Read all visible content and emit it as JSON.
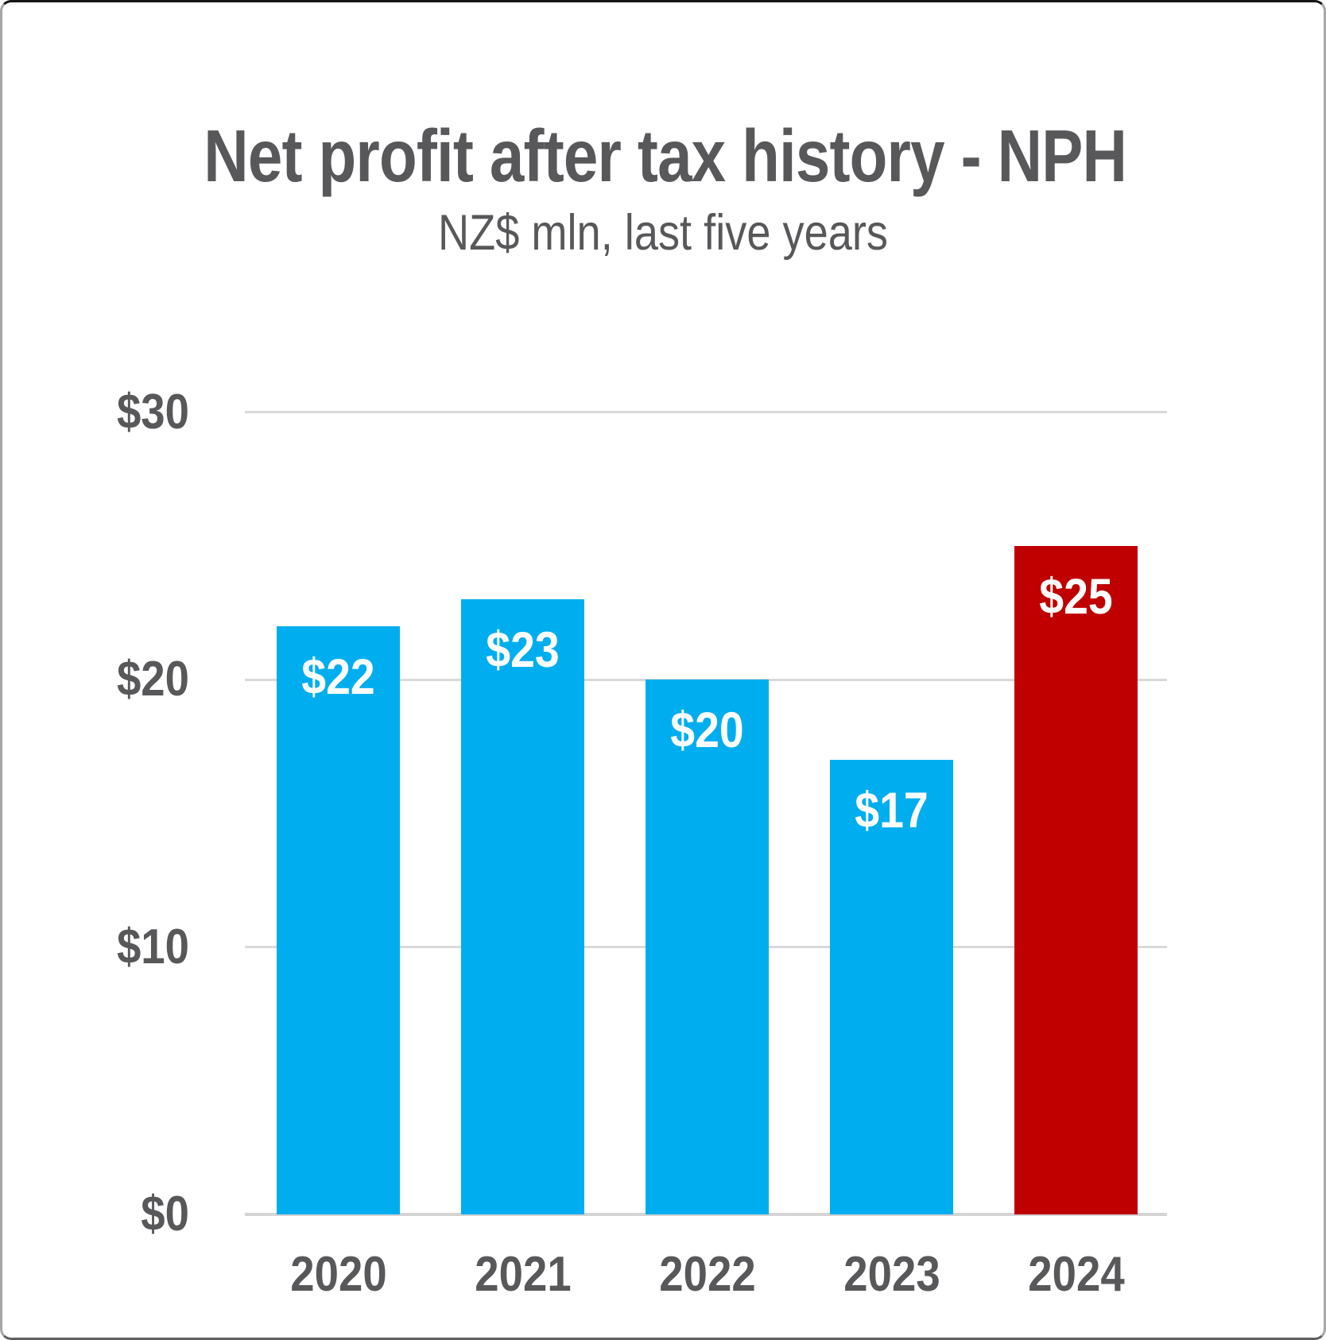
{
  "page": {
    "title": "Net profit after tax history - NPH",
    "subtitle": "NZ$ mln, last five years"
  },
  "chart_data": {
    "type": "bar",
    "title": "Net profit after tax history - NPH",
    "subtitle": "NZ$ mln, last five years",
    "categories": [
      "2020",
      "2021",
      "2022",
      "2023",
      "2024"
    ],
    "values": [
      22,
      23,
      20,
      17,
      25
    ],
    "value_labels": [
      "$22",
      "$23",
      "$20",
      "$17",
      "$25"
    ],
    "series": [
      {
        "name": "Net profit after tax (NZ$ mln)",
        "values": [
          22,
          23,
          20,
          17,
          25
        ]
      }
    ],
    "xlabel": "",
    "ylabel": "",
    "ylim": [
      0,
      30
    ],
    "yticks": [
      {
        "value": 30,
        "label": "$30"
      },
      {
        "value": 20,
        "label": "$20"
      },
      {
        "value": 10,
        "label": "$10"
      },
      {
        "value": 0,
        "label": "$0"
      }
    ],
    "grid": "horizontal",
    "legend_position": "none",
    "bar_colors": [
      "#00aeef",
      "#00aeef",
      "#00aeef",
      "#00aeef",
      "#c00000"
    ],
    "colors": {
      "default_bar": "#00aeef",
      "highlight_bar": "#c00000",
      "axis_text": "#58585b",
      "title_text": "#58585b",
      "gridline": "#d9d9d9",
      "bar_value_text": "#ffffff",
      "background": "#ffffff"
    }
  }
}
